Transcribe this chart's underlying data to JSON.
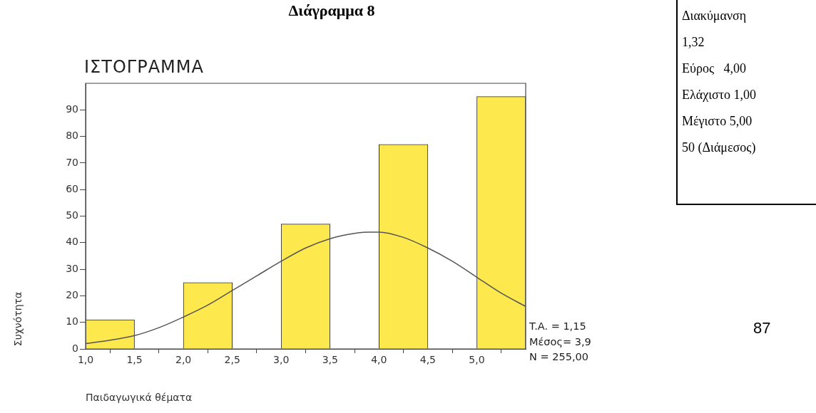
{
  "chart_data": {
    "type": "histogram",
    "title": "Διάγραμμα 8",
    "subtitle": "ΙΣΤΟΓΡΑΜΜΑ",
    "xlabel": "Παιδαγωγικά θέματα",
    "ylabel": "Συχνότητα",
    "bins": [
      1,
      1.5,
      2,
      2.5,
      3,
      3.5,
      4,
      4.5,
      5,
      5.5
    ],
    "values": [
      11,
      0,
      25,
      0,
      47,
      0,
      77,
      0,
      95
    ],
    "color": "#fde84e",
    "series": [
      {
        "type": "line",
        "color": "#555555",
        "x": [
          1,
          1.25,
          1.5,
          1.75,
          2,
          2.25,
          2.5,
          2.75,
          3,
          3.25,
          3.5,
          3.75,
          3.9,
          4,
          4.25,
          4.5,
          4.75,
          5,
          5.25,
          5.5
        ],
        "values": [
          2,
          3.3,
          5,
          8,
          12,
          16.5,
          22,
          27.5,
          33,
          38,
          41.5,
          43.5,
          44,
          44,
          42,
          38,
          33,
          27,
          21,
          16
        ]
      }
    ],
    "xlim": [
      1,
      5.5
    ],
    "xticks": [
      {
        "value": 1,
        "label": "1,0"
      },
      {
        "value": 1.5,
        "label": "1,5"
      },
      {
        "value": 2,
        "label": "2,0"
      },
      {
        "value": 2.5,
        "label": "2,5"
      },
      {
        "value": 3,
        "label": "3,0"
      },
      {
        "value": 3.5,
        "label": "3,5"
      },
      {
        "value": 4,
        "label": "4,0"
      },
      {
        "value": 4.5,
        "label": "4,5"
      },
      {
        "value": 5,
        "label": "5,0"
      }
    ],
    "ylim": [
      0,
      100
    ],
    "yticks": [
      0,
      10,
      20,
      30,
      40,
      50,
      60,
      70,
      80,
      90
    ],
    "grid": false,
    "legend": false,
    "marker": "none",
    "annotations": [
      "T.A. = 1,15",
      "Μέσος= 3,9",
      "N = 255,00",
      "Διακύμανση",
      "1,32",
      "Εύρος   4,00",
      "Ελάχιστο 1,00",
      "Μέγιστο 5,00",
      "50 (Διάμεσος)",
      "87"
    ]
  }
}
